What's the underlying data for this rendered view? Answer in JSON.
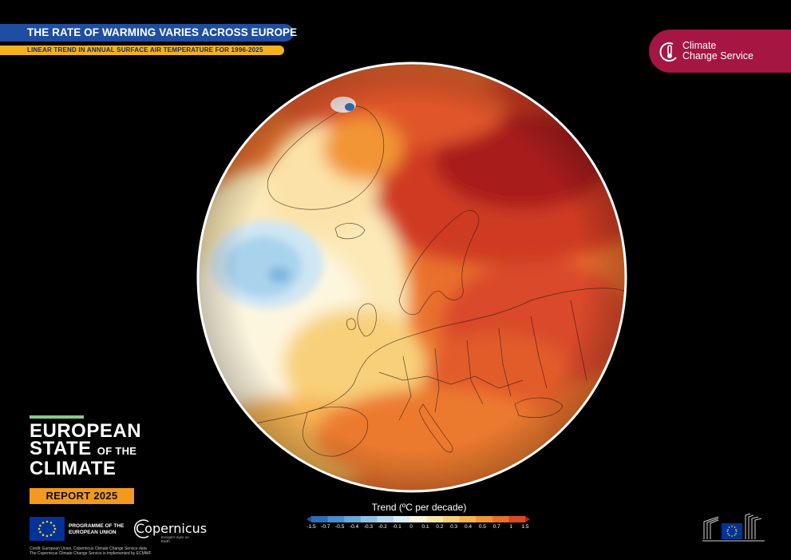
{
  "header": {
    "title": "THE RATE OF WARMING VARIES ACROSS EUROPE",
    "subtitle": "LINEAR TREND IN ANNUAL SURFACE AIR TEMPERATURE FOR 1996-2025"
  },
  "c3s_logo": {
    "line1": "Climate",
    "line2": "Change Service",
    "color": "#a51642"
  },
  "branding": {
    "line1": "EUROPEAN",
    "line2_a": "STATE",
    "line2_b": "OF THE",
    "line3": "CLIMATE",
    "report": "REPORT 2025"
  },
  "footer": {
    "eu_line1": "PROGRAMME OF THE",
    "eu_line2": "EUROPEAN UNION",
    "copernicus_name": "Copernicus",
    "copernicus_tag": "Europe's eyes on Earth",
    "credit_line1": "Credit: European Union, Copernicus Climate Change Service data",
    "credit_line2": "The Copernicus Climate Change Service is implemented by ECMWF"
  },
  "legend": {
    "title": "Trend (ºC per decade)",
    "labels": [
      "-1.5",
      "-0.7",
      "-0.5",
      "-0.4",
      "-0.3",
      "-0.2",
      "-0.1",
      "0",
      "0.1",
      "0.2",
      "0.3",
      "0.4",
      "0.5",
      "0.7",
      "1",
      "1.5"
    ],
    "colors": [
      "#1e4f9c",
      "#2f6db4",
      "#4a8ccb",
      "#6aa8d9",
      "#8fc3e6",
      "#b5d9ef",
      "#dbeef7",
      "#fdf7e0",
      "#fae6a8",
      "#f8d07a",
      "#f5b452",
      "#f29536",
      "#e8702a",
      "#d84a22",
      "#b8201f"
    ]
  },
  "colors": {
    "title_banner": "#1f4ea0",
    "subtitle_banner": "#f2b21e",
    "report_badge": "#f29a1d",
    "accent_line": "#8cc78a"
  }
}
